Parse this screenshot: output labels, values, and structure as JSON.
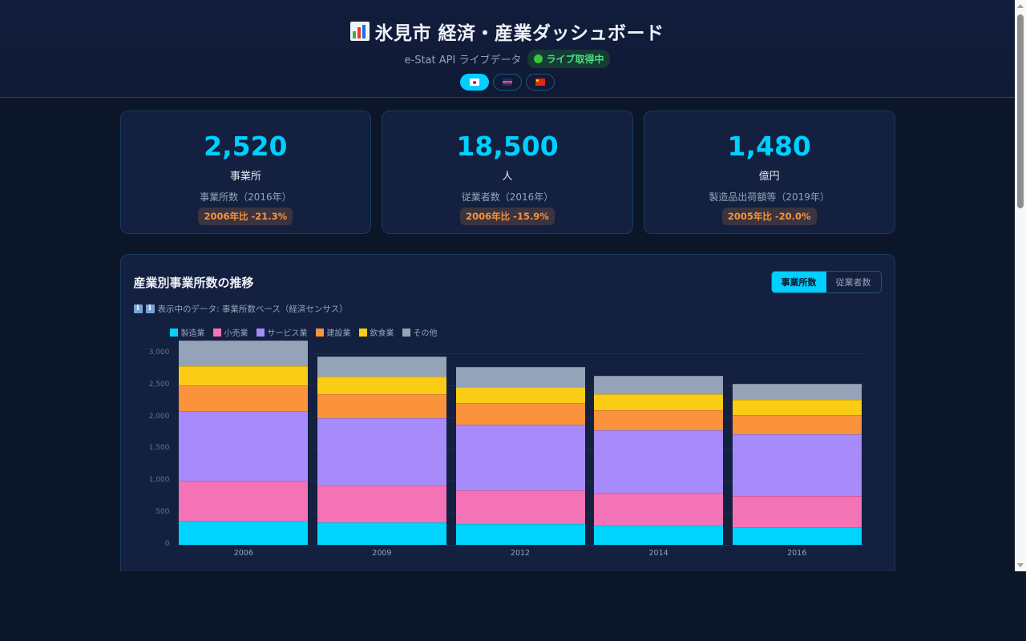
{
  "header": {
    "title": "氷見市 経済・産業ダッシュボード",
    "title_icon": "bar-chart-icon",
    "subtitle": "e-Stat API ライブデータ",
    "live_badge": "ライブ取得中",
    "languages": [
      {
        "code": "ja",
        "icon": "flag-japan-icon",
        "active": true
      },
      {
        "code": "en",
        "icon": "flag-uk-icon",
        "active": false
      },
      {
        "code": "zh",
        "icon": "flag-china-icon",
        "active": false
      }
    ]
  },
  "kpis": [
    {
      "value": "2,520",
      "unit": "事業所",
      "label": "事業所数（2016年）",
      "change": "2006年比 -21.3%"
    },
    {
      "value": "18,500",
      "unit": "人",
      "label": "従業者数（2016年）",
      "change": "2006年比 -15.9%"
    },
    {
      "value": "1,480",
      "unit": "億円",
      "label": "製造品出荷額等（2019年）",
      "change": "2005年比 -20.0%"
    }
  ],
  "chart_panel": {
    "title": "産業別事業所数の推移",
    "toggle": [
      {
        "label": "事業所数",
        "active": true
      },
      {
        "label": "従業者数",
        "active": false
      }
    ],
    "note": "ℹ️ 表示中のデータ: 事業所数ベース（経済センサス）"
  },
  "colors": {
    "accent": "#00cfff",
    "background": "#0b1628",
    "panel": "#13203f",
    "change_badge": "#fb923c",
    "live": "#4ade80"
  },
  "chart_data": {
    "type": "bar",
    "stacked": true,
    "title": "産業別事業所数の推移",
    "xlabel": "",
    "ylabel": "",
    "categories": [
      "2006",
      "2009",
      "2012",
      "2014",
      "2016"
    ],
    "series": [
      {
        "name": "製造業",
        "color": "#00d4ff",
        "values": [
          380,
          350,
          330,
          300,
          280
        ]
      },
      {
        "name": "小売業",
        "color": "#f472b6",
        "values": [
          620,
          580,
          520,
          510,
          480
        ]
      },
      {
        "name": "サービス業",
        "color": "#a78bfa",
        "values": [
          1100,
          1050,
          1030,
          990,
          970
        ]
      },
      {
        "name": "建設業",
        "color": "#fb923c",
        "values": [
          400,
          380,
          340,
          310,
          300
        ]
      },
      {
        "name": "飲食業",
        "color": "#facc15",
        "values": [
          300,
          280,
          250,
          250,
          240
        ]
      },
      {
        "name": "その他",
        "color": "#94a3b8",
        "values": [
          400,
          310,
          310,
          290,
          250
        ]
      }
    ],
    "ylim": [
      0,
      3200
    ],
    "yticks": [
      "0",
      "500",
      "1,000",
      "1,500",
      "2,000",
      "2,500",
      "3,000"
    ],
    "grid": true,
    "legend_position": "top"
  }
}
